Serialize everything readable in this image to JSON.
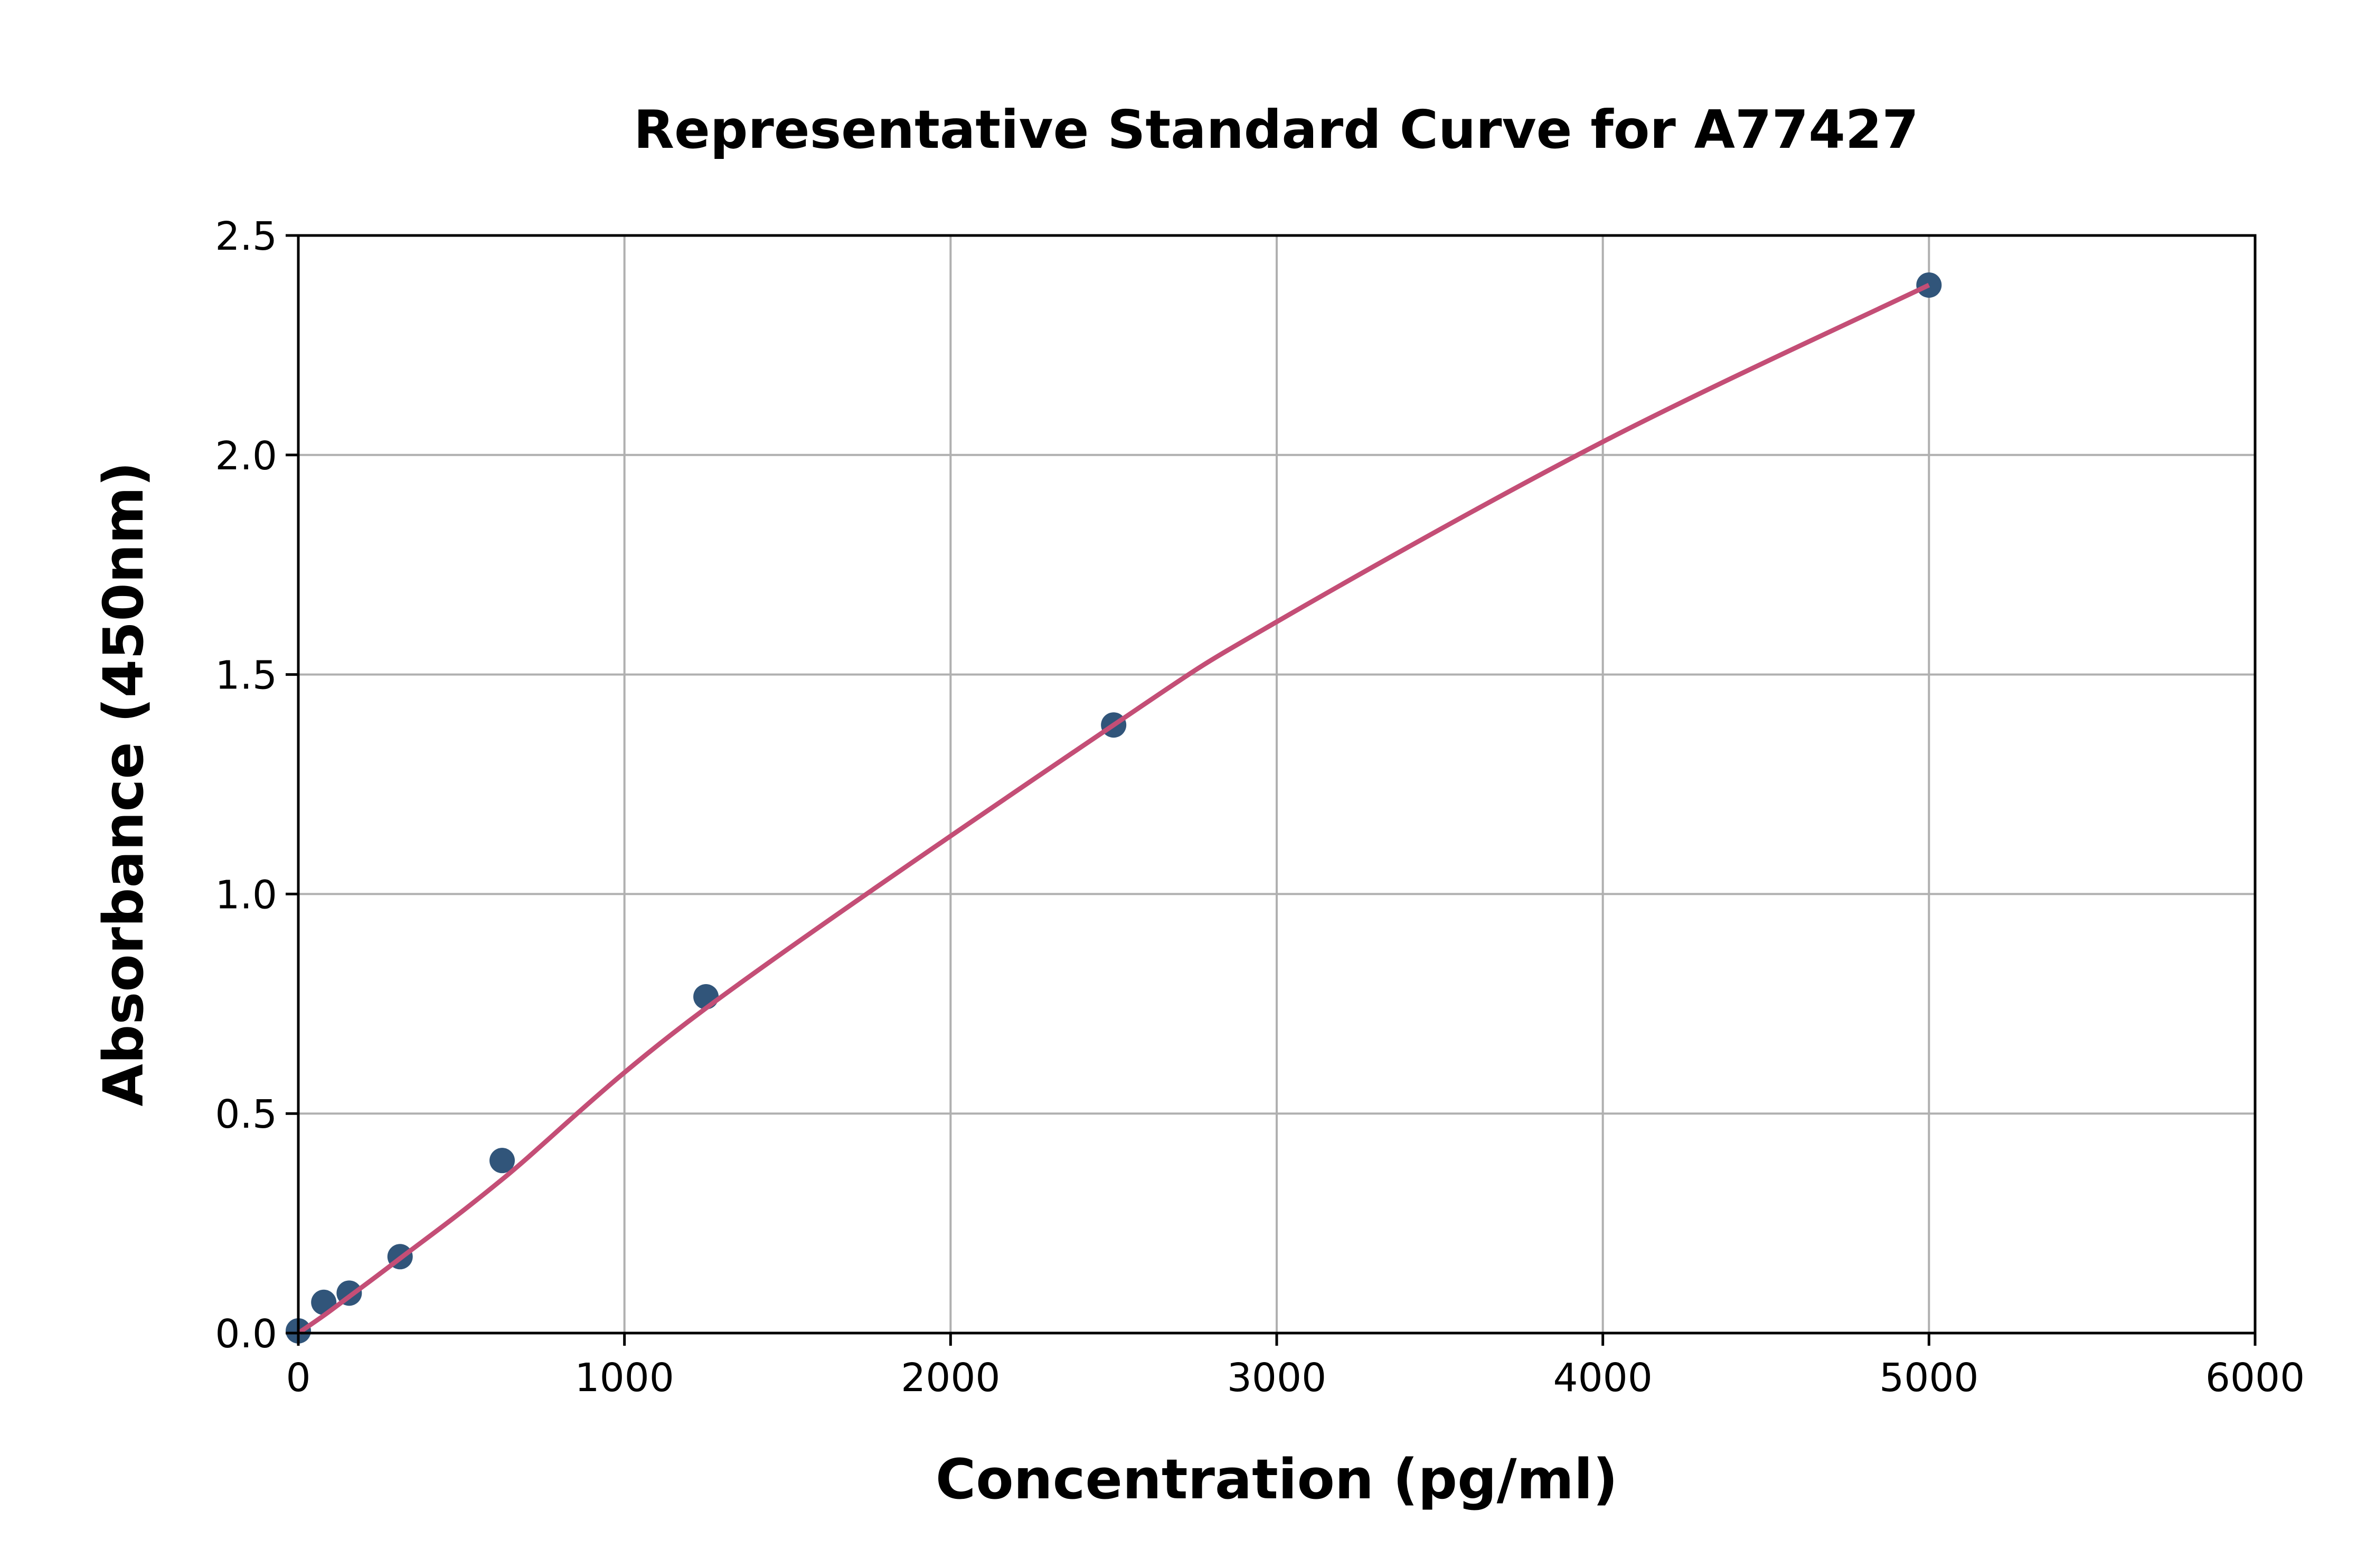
{
  "chart_data": {
    "type": "scatter",
    "title": "Representative Standard Curve for A77427",
    "xlabel": "Concentration (pg/ml)",
    "ylabel": "Absorbance (450nm)",
    "xlim": [
      0,
      6000
    ],
    "ylim": [
      0,
      2.5
    ],
    "xticks": [
      "0",
      "1000",
      "2000",
      "3000",
      "4000",
      "5000",
      "6000"
    ],
    "yticks": [
      "0.0",
      "0.5",
      "1.0",
      "1.5",
      "2.0",
      "2.5"
    ],
    "grid": true,
    "points": {
      "x": [
        0,
        78,
        156,
        312,
        625,
        1250,
        2500,
        5000
      ],
      "y": [
        0.005,
        0.07,
        0.091,
        0.174,
        0.393,
        0.766,
        1.385,
        2.387
      ]
    },
    "fit_curve": {
      "x": [
        0,
        78,
        156,
        312,
        625,
        1250,
        2500,
        3000,
        4000,
        5000
      ],
      "y": [
        0.0,
        0.04,
        0.083,
        0.17,
        0.35,
        0.74,
        1.385,
        1.62,
        2.03,
        2.387
      ]
    },
    "colors": {
      "points": "#31557a",
      "curve": "#c44e76",
      "grid": "#b0b0b0"
    }
  }
}
